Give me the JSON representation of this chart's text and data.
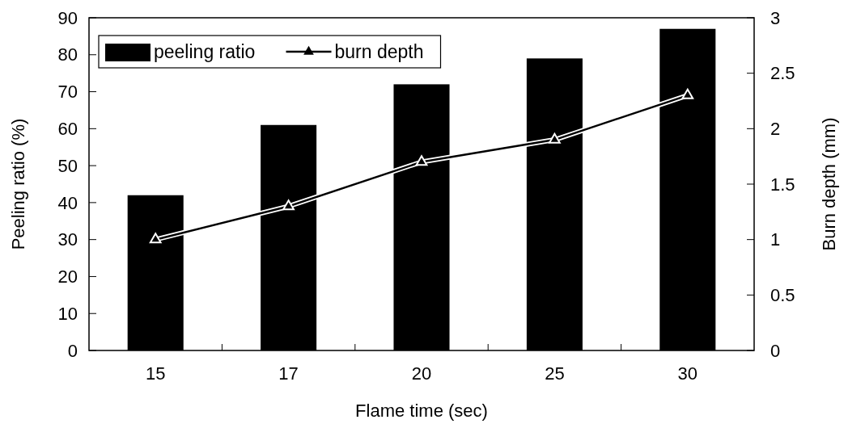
{
  "chart_data": {
    "type": "bar",
    "xlabel": "Flame time (sec)",
    "ylabel": "Peeling ratio (%)",
    "y2label": "Burn depth (mm)",
    "categories": [
      "15",
      "17",
      "20",
      "25",
      "30"
    ],
    "series": [
      {
        "name": "peeling ratio",
        "color": "#000000",
        "values": [
          42,
          61,
          72,
          79,
          87
        ]
      },
      {
        "name": "burn depth",
        "type": "line",
        "axis": "y2",
        "color": "#000000",
        "marker": "triangle",
        "values": [
          1.0,
          1.3,
          1.7,
          1.9,
          2.3
        ]
      }
    ],
    "ylim": [
      0,
      90
    ],
    "yticks": [
      0,
      10,
      20,
      30,
      40,
      50,
      60,
      70,
      80,
      90
    ],
    "y2lim": [
      0,
      3
    ],
    "y2ticks": [
      0,
      0.5,
      1,
      1.5,
      2,
      2.5,
      3
    ],
    "legend": "top left",
    "grid": false
  }
}
